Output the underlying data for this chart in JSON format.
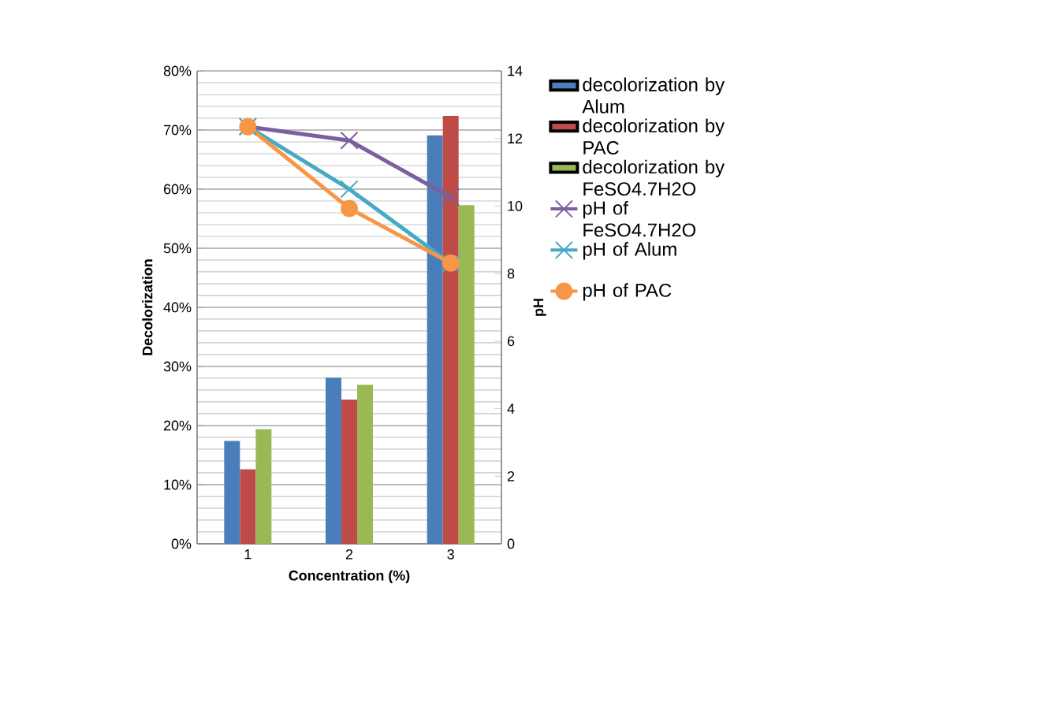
{
  "chart_data": {
    "type": "bar",
    "xlabel": "Concentration (%)",
    "ylabel": "Decolorization",
    "y2label": "pH",
    "categories": [
      "1",
      "2",
      "3"
    ],
    "series": [
      {
        "name": "decolorization by Alum",
        "color": "#4a7ebb",
        "values": [
          17.4,
          28.1,
          69.1
        ]
      },
      {
        "name": "decolorization by PAC",
        "color": "#be4b48",
        "values": [
          12.6,
          24.4,
          72.4
        ]
      },
      {
        "name": "decolorization by FeSO4.7H2O",
        "color": "#98b954",
        "values": [
          19.4,
          26.9,
          57.3
        ]
      },
      {
        "name": "pH of FeSO4.7H2O",
        "type": "line",
        "axis": "y2",
        "color": "#7d5fa0",
        "marker": "cross",
        "values": [
          12.35,
          11.94,
          10.26
        ]
      },
      {
        "name": "pH of Alum",
        "type": "line",
        "axis": "y2",
        "color": "#46aac5",
        "marker": "cross",
        "values": [
          12.35,
          10.5,
          8.3
        ]
      },
      {
        "name": "pH of PAC",
        "type": "line",
        "axis": "y2",
        "color": "#f79646",
        "marker": "circle",
        "values": [
          12.35,
          9.93,
          8.31
        ]
      }
    ],
    "ylim": [
      0,
      80
    ],
    "yticks": [
      {
        "value": 0,
        "label": "0%"
      },
      {
        "value": 10,
        "label": "10%"
      },
      {
        "value": 20,
        "label": "20%"
      },
      {
        "value": 30,
        "label": "30%"
      },
      {
        "value": 40,
        "label": "40%"
      },
      {
        "value": 50,
        "label": "50%"
      },
      {
        "value": 60,
        "label": "60%"
      },
      {
        "value": 70,
        "label": "70%"
      },
      {
        "value": 80,
        "label": "80%"
      }
    ],
    "y2lim": [
      0,
      14
    ],
    "y2ticks": [
      0,
      2,
      4,
      6,
      8,
      10,
      12,
      14
    ],
    "grid": "y",
    "legend": "right"
  }
}
